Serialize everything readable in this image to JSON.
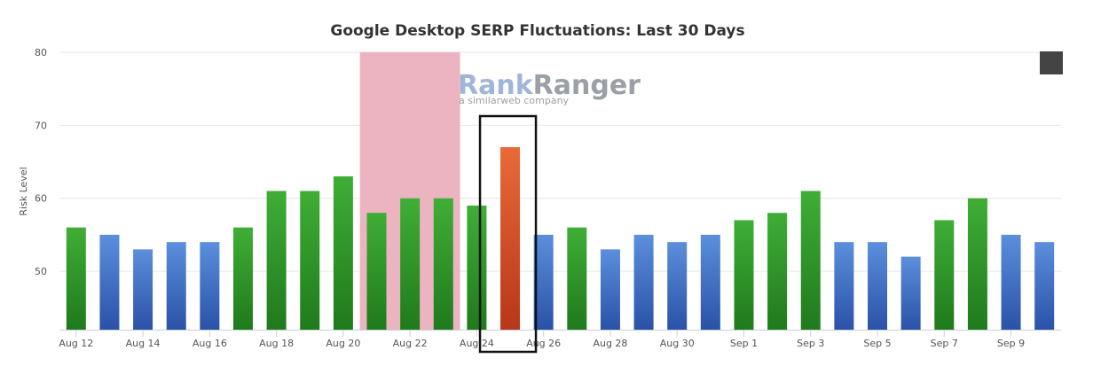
{
  "chart_data": {
    "type": "bar",
    "title": "Google Desktop SERP Fluctuations: Last 30 Days",
    "ylabel": "Risk Level",
    "xlabel": "",
    "ylim": [
      42,
      80
    ],
    "y_ticks": [
      50,
      60,
      70,
      80
    ],
    "grid": true,
    "legend": "none",
    "categories": [
      "Aug 12",
      "Aug 13",
      "Aug 14",
      "Aug 15",
      "Aug 16",
      "Aug 17",
      "Aug 18",
      "Aug 19",
      "Aug 20",
      "Aug 21",
      "Aug 22",
      "Aug 23",
      "Aug 24",
      "Aug 25",
      "Aug 26",
      "Aug 27",
      "Aug 28",
      "Aug 29",
      "Aug 30",
      "Aug 31",
      "Sep 1",
      "Sep 2",
      "Sep 3",
      "Sep 4",
      "Sep 5",
      "Sep 6",
      "Sep 7",
      "Sep 8",
      "Sep 9",
      "Sep 10"
    ],
    "x_tick_labels": [
      "Aug 12",
      "Aug 14",
      "Aug 16",
      "Aug 18",
      "Aug 20",
      "Aug 22",
      "Aug 24",
      "Aug 26",
      "Aug 28",
      "Aug 30",
      "Sep 1",
      "Sep 3",
      "Sep 5",
      "Sep 7",
      "Sep 9"
    ],
    "values": [
      56,
      55,
      53,
      54,
      54,
      56,
      61,
      61,
      63,
      58,
      60,
      60,
      59,
      67,
      55,
      56,
      53,
      55,
      54,
      55,
      57,
      58,
      61,
      54,
      54,
      52,
      57,
      60,
      55,
      54
    ],
    "bar_levels": [
      "medium",
      "low",
      "low",
      "low",
      "low",
      "medium",
      "medium",
      "medium",
      "medium",
      "medium",
      "medium",
      "medium",
      "medium",
      "high",
      "low",
      "medium",
      "low",
      "low",
      "low",
      "low",
      "medium",
      "medium",
      "medium",
      "low",
      "low",
      "low",
      "medium",
      "medium",
      "low",
      "low"
    ],
    "level_colors": {
      "low": [
        "#5b8fdc",
        "#2a52a8"
      ],
      "medium": [
        "#3fae36",
        "#1f7a1c"
      ],
      "high": [
        "#e86a38",
        "#b8361a"
      ]
    },
    "highlight_band": {
      "from": "Aug 21",
      "to": "Aug 23",
      "color": "#ebb4c0"
    },
    "boxed_category": "Aug 25"
  },
  "watermark": {
    "brand_part1": "Rank",
    "brand_part2": "Ranger",
    "tagline": "a similarweb company",
    "color1": "#9fb6d8",
    "color2": "#9aa0a6"
  },
  "menu_icon": "hamburger-menu-icon"
}
